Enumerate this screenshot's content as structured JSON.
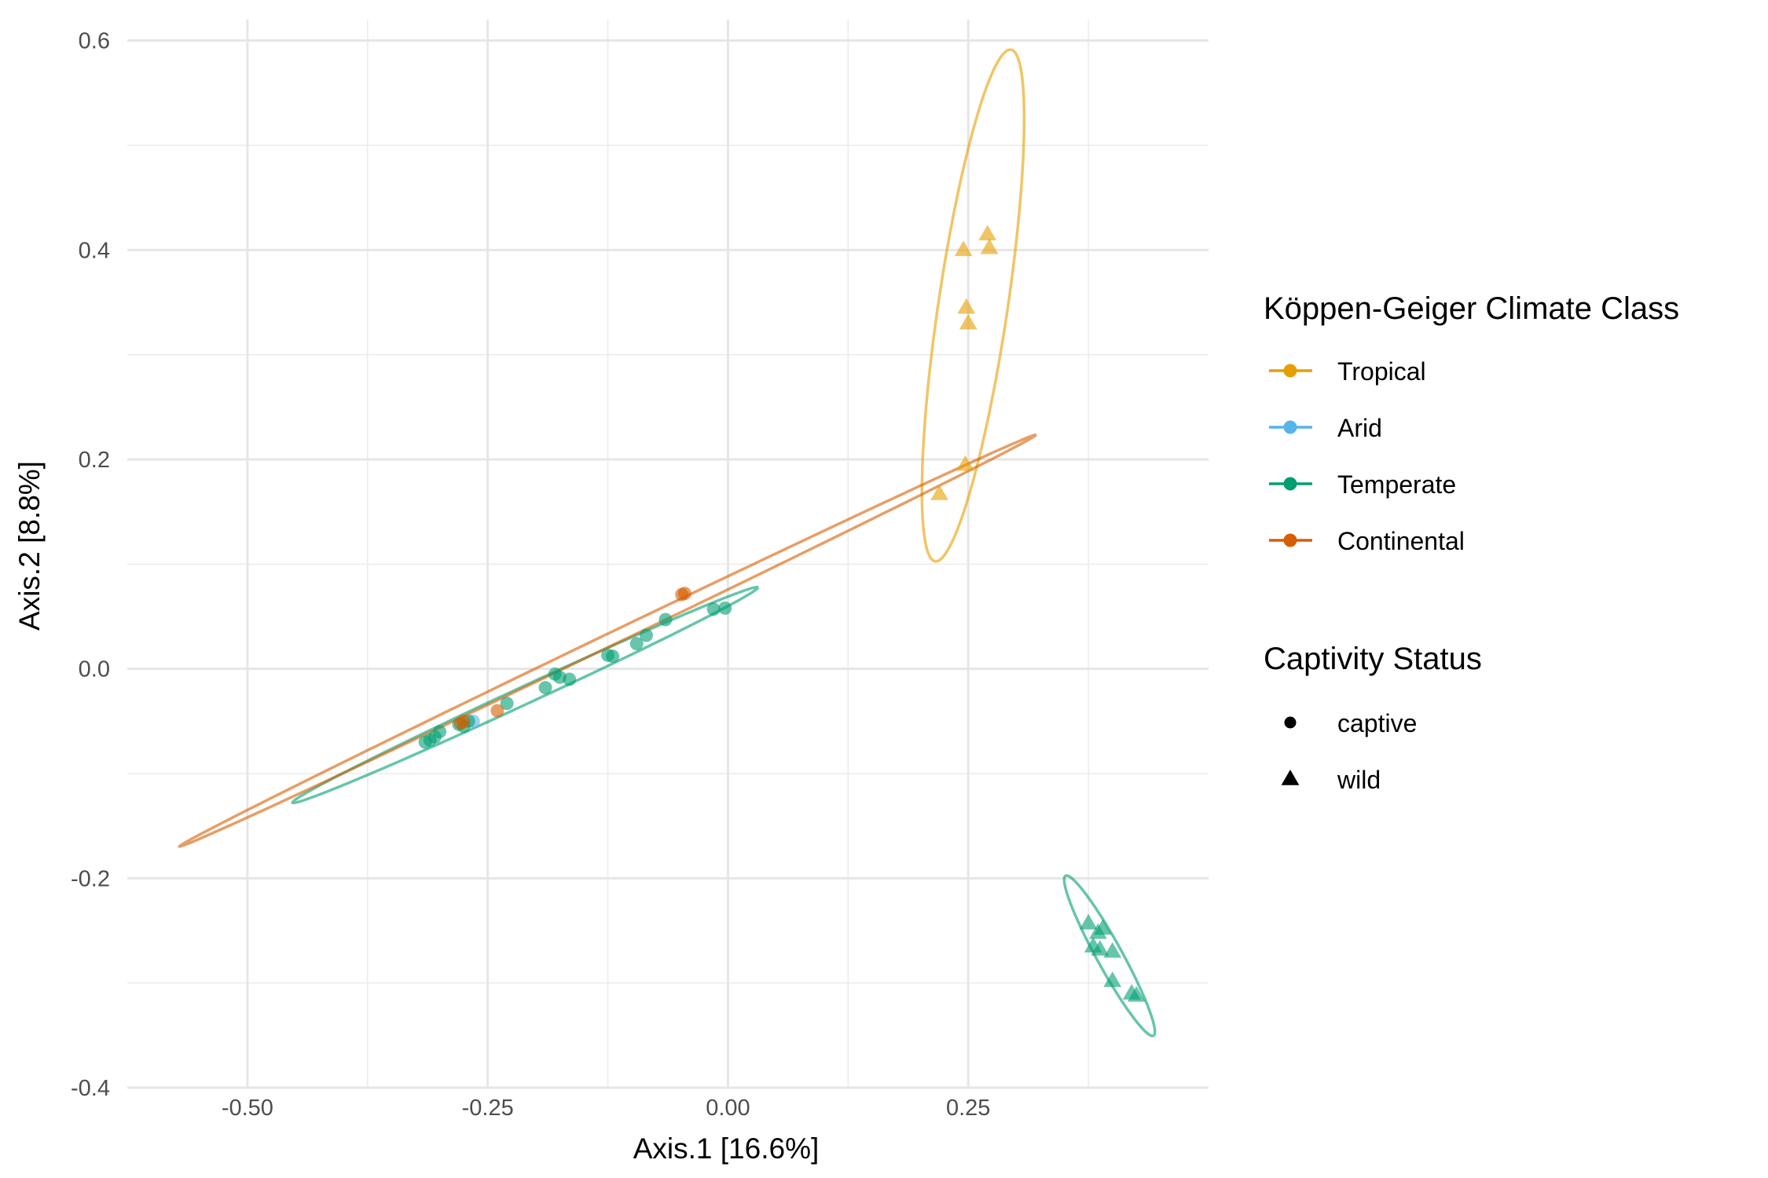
{
  "chart_data": {
    "type": "scatter",
    "xlabel": "Axis.1   [16.6%]",
    "ylabel": "Axis.2   [8.8%]",
    "xlim": [
      -0.625,
      0.5
    ],
    "ylim": [
      -0.4,
      0.62
    ],
    "x_ticks": [
      -0.5,
      -0.25,
      0.0,
      0.25
    ],
    "x_tick_labels": [
      "-0.50",
      "-0.25",
      "0.00",
      "0.25"
    ],
    "y_ticks": [
      -0.4,
      -0.2,
      0.0,
      0.2,
      0.4,
      0.6
    ],
    "y_tick_labels": [
      "-0.4",
      "-0.2",
      "0.0",
      "0.2",
      "0.4",
      "0.6"
    ],
    "grid": true,
    "legend_position": "right",
    "legends": [
      {
        "title": "Köppen-Geiger Climate Class",
        "kind": "color",
        "entries": [
          {
            "label": "Tropical",
            "color": "#E69F00"
          },
          {
            "label": "Arid",
            "color": "#56B4E9"
          },
          {
            "label": "Temperate",
            "color": "#009E73"
          },
          {
            "label": "Continental",
            "color": "#D55E00"
          }
        ]
      },
      {
        "title": "Captivity Status",
        "kind": "shape",
        "entries": [
          {
            "label": "captive",
            "shape": "circle"
          },
          {
            "label": "wild",
            "shape": "triangle"
          }
        ]
      }
    ],
    "series": [
      {
        "name": "Tropical",
        "color": "#E69F00",
        "shape": "triangle",
        "points": [
          [
            0.245,
            0.4
          ],
          [
            0.27,
            0.415
          ],
          [
            0.272,
            0.402
          ],
          [
            0.248,
            0.345
          ],
          [
            0.25,
            0.33
          ],
          [
            0.22,
            0.167
          ],
          [
            0.247,
            0.195
          ]
        ],
        "ellipse": {
          "center": [
            0.255,
            0.347
          ],
          "semi_major": 0.2475,
          "semi_minor": 0.036,
          "angle_deg": 80.8
        }
      },
      {
        "name": "Arid",
        "color": "#56B4E9",
        "shape": "circle",
        "points": [
          [
            -0.265,
            -0.05
          ]
        ],
        "ellipse": null
      },
      {
        "name": "Temperate",
        "color": "#009E73",
        "shape": "circle",
        "points": [
          [
            -0.315,
            -0.07
          ],
          [
            -0.31,
            -0.068
          ],
          [
            -0.305,
            -0.065
          ],
          [
            -0.3,
            -0.06
          ],
          [
            -0.28,
            -0.053
          ],
          [
            -0.275,
            -0.055
          ],
          [
            -0.27,
            -0.05
          ],
          [
            -0.23,
            -0.033
          ],
          [
            -0.19,
            -0.018
          ],
          [
            -0.18,
            -0.005
          ],
          [
            -0.175,
            -0.008
          ],
          [
            -0.165,
            -0.01
          ],
          [
            -0.125,
            0.013
          ],
          [
            -0.12,
            0.012
          ],
          [
            -0.095,
            0.024
          ],
          [
            -0.085,
            0.032
          ],
          [
            -0.065,
            0.047
          ],
          [
            -0.015,
            0.057
          ],
          [
            -0.003,
            0.058
          ]
        ],
        "ellipse": {
          "center": [
            -0.211,
            -0.025
          ],
          "semi_major": 0.263,
          "semi_minor": 0.0085,
          "angle_deg": 23.0
        }
      },
      {
        "name": "Temperate",
        "color": "#009E73",
        "shape": "triangle",
        "points": [
          [
            0.375,
            -0.243
          ],
          [
            0.385,
            -0.252
          ],
          [
            0.39,
            -0.248
          ],
          [
            0.38,
            -0.265
          ],
          [
            0.387,
            -0.268
          ],
          [
            0.4,
            -0.27
          ],
          [
            0.4,
            -0.298
          ],
          [
            0.42,
            -0.31
          ],
          [
            0.425,
            -0.312
          ]
        ],
        "ellipse": {
          "center": [
            0.397,
            -0.274
          ],
          "semi_major": 0.089,
          "semi_minor": 0.013,
          "angle_deg": -59.0
        }
      },
      {
        "name": "Continental",
        "color": "#D55E00",
        "shape": "circle",
        "points": [
          [
            -0.045,
            0.072
          ],
          [
            -0.048,
            0.071
          ],
          [
            -0.24,
            -0.04
          ],
          [
            -0.275,
            -0.05
          ],
          [
            -0.278,
            -0.052
          ]
        ],
        "ellipse": {
          "center": [
            -0.125,
            0.027
          ],
          "semi_major": 0.487,
          "semi_minor": 0.006,
          "angle_deg": 23.8
        }
      }
    ]
  }
}
